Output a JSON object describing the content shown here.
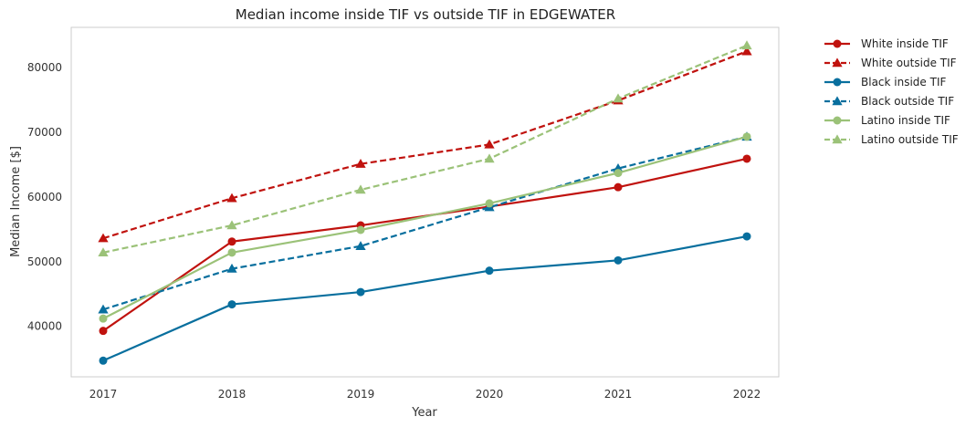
{
  "chart_data": {
    "type": "line",
    "title": "Median income inside TIF vs outside TIF in EDGEWATER",
    "xlabel": "Year",
    "ylabel": "Median Income [$]",
    "x": [
      2017,
      2018,
      2019,
      2020,
      2021,
      2022
    ],
    "x_tick_labels": [
      "2017",
      "2018",
      "2019",
      "2020",
      "2021",
      "2022"
    ],
    "y_ticks": [
      40000,
      50000,
      60000,
      70000,
      80000
    ],
    "y_tick_labels": [
      "40000",
      "50000",
      "60000",
      "70000",
      "80000"
    ],
    "ylim": [
      32200,
      86200
    ],
    "grid": false,
    "legend_position": "outside-top-right",
    "series": [
      {
        "name": "White inside TIF",
        "values": [
          39300,
          53100,
          55600,
          58500,
          61500,
          65900
        ],
        "color": "#c0120e",
        "dash": "solid",
        "marker": "circle"
      },
      {
        "name": "White outside TIF",
        "values": [
          53600,
          59800,
          65100,
          68100,
          74900,
          82500
        ],
        "color": "#c0120e",
        "dash": "dashed",
        "marker": "triangle"
      },
      {
        "name": "Black inside TIF",
        "values": [
          34700,
          43400,
          45300,
          48600,
          50200,
          53900
        ],
        "color": "#086f9e",
        "dash": "solid",
        "marker": "circle"
      },
      {
        "name": "Black outside TIF",
        "values": [
          42600,
          48900,
          52400,
          58400,
          64400,
          69300
        ],
        "color": "#086f9e",
        "dash": "dashed",
        "marker": "triangle"
      },
      {
        "name": "Latino inside TIF",
        "values": [
          41200,
          51400,
          54900,
          59000,
          63700,
          69300
        ],
        "color": "#9bc278",
        "dash": "solid",
        "marker": "circle"
      },
      {
        "name": "Latino outside TIF",
        "values": [
          51400,
          55600,
          61100,
          65900,
          75200,
          83400
        ],
        "color": "#9bc278",
        "dash": "dashed",
        "marker": "triangle"
      }
    ]
  }
}
